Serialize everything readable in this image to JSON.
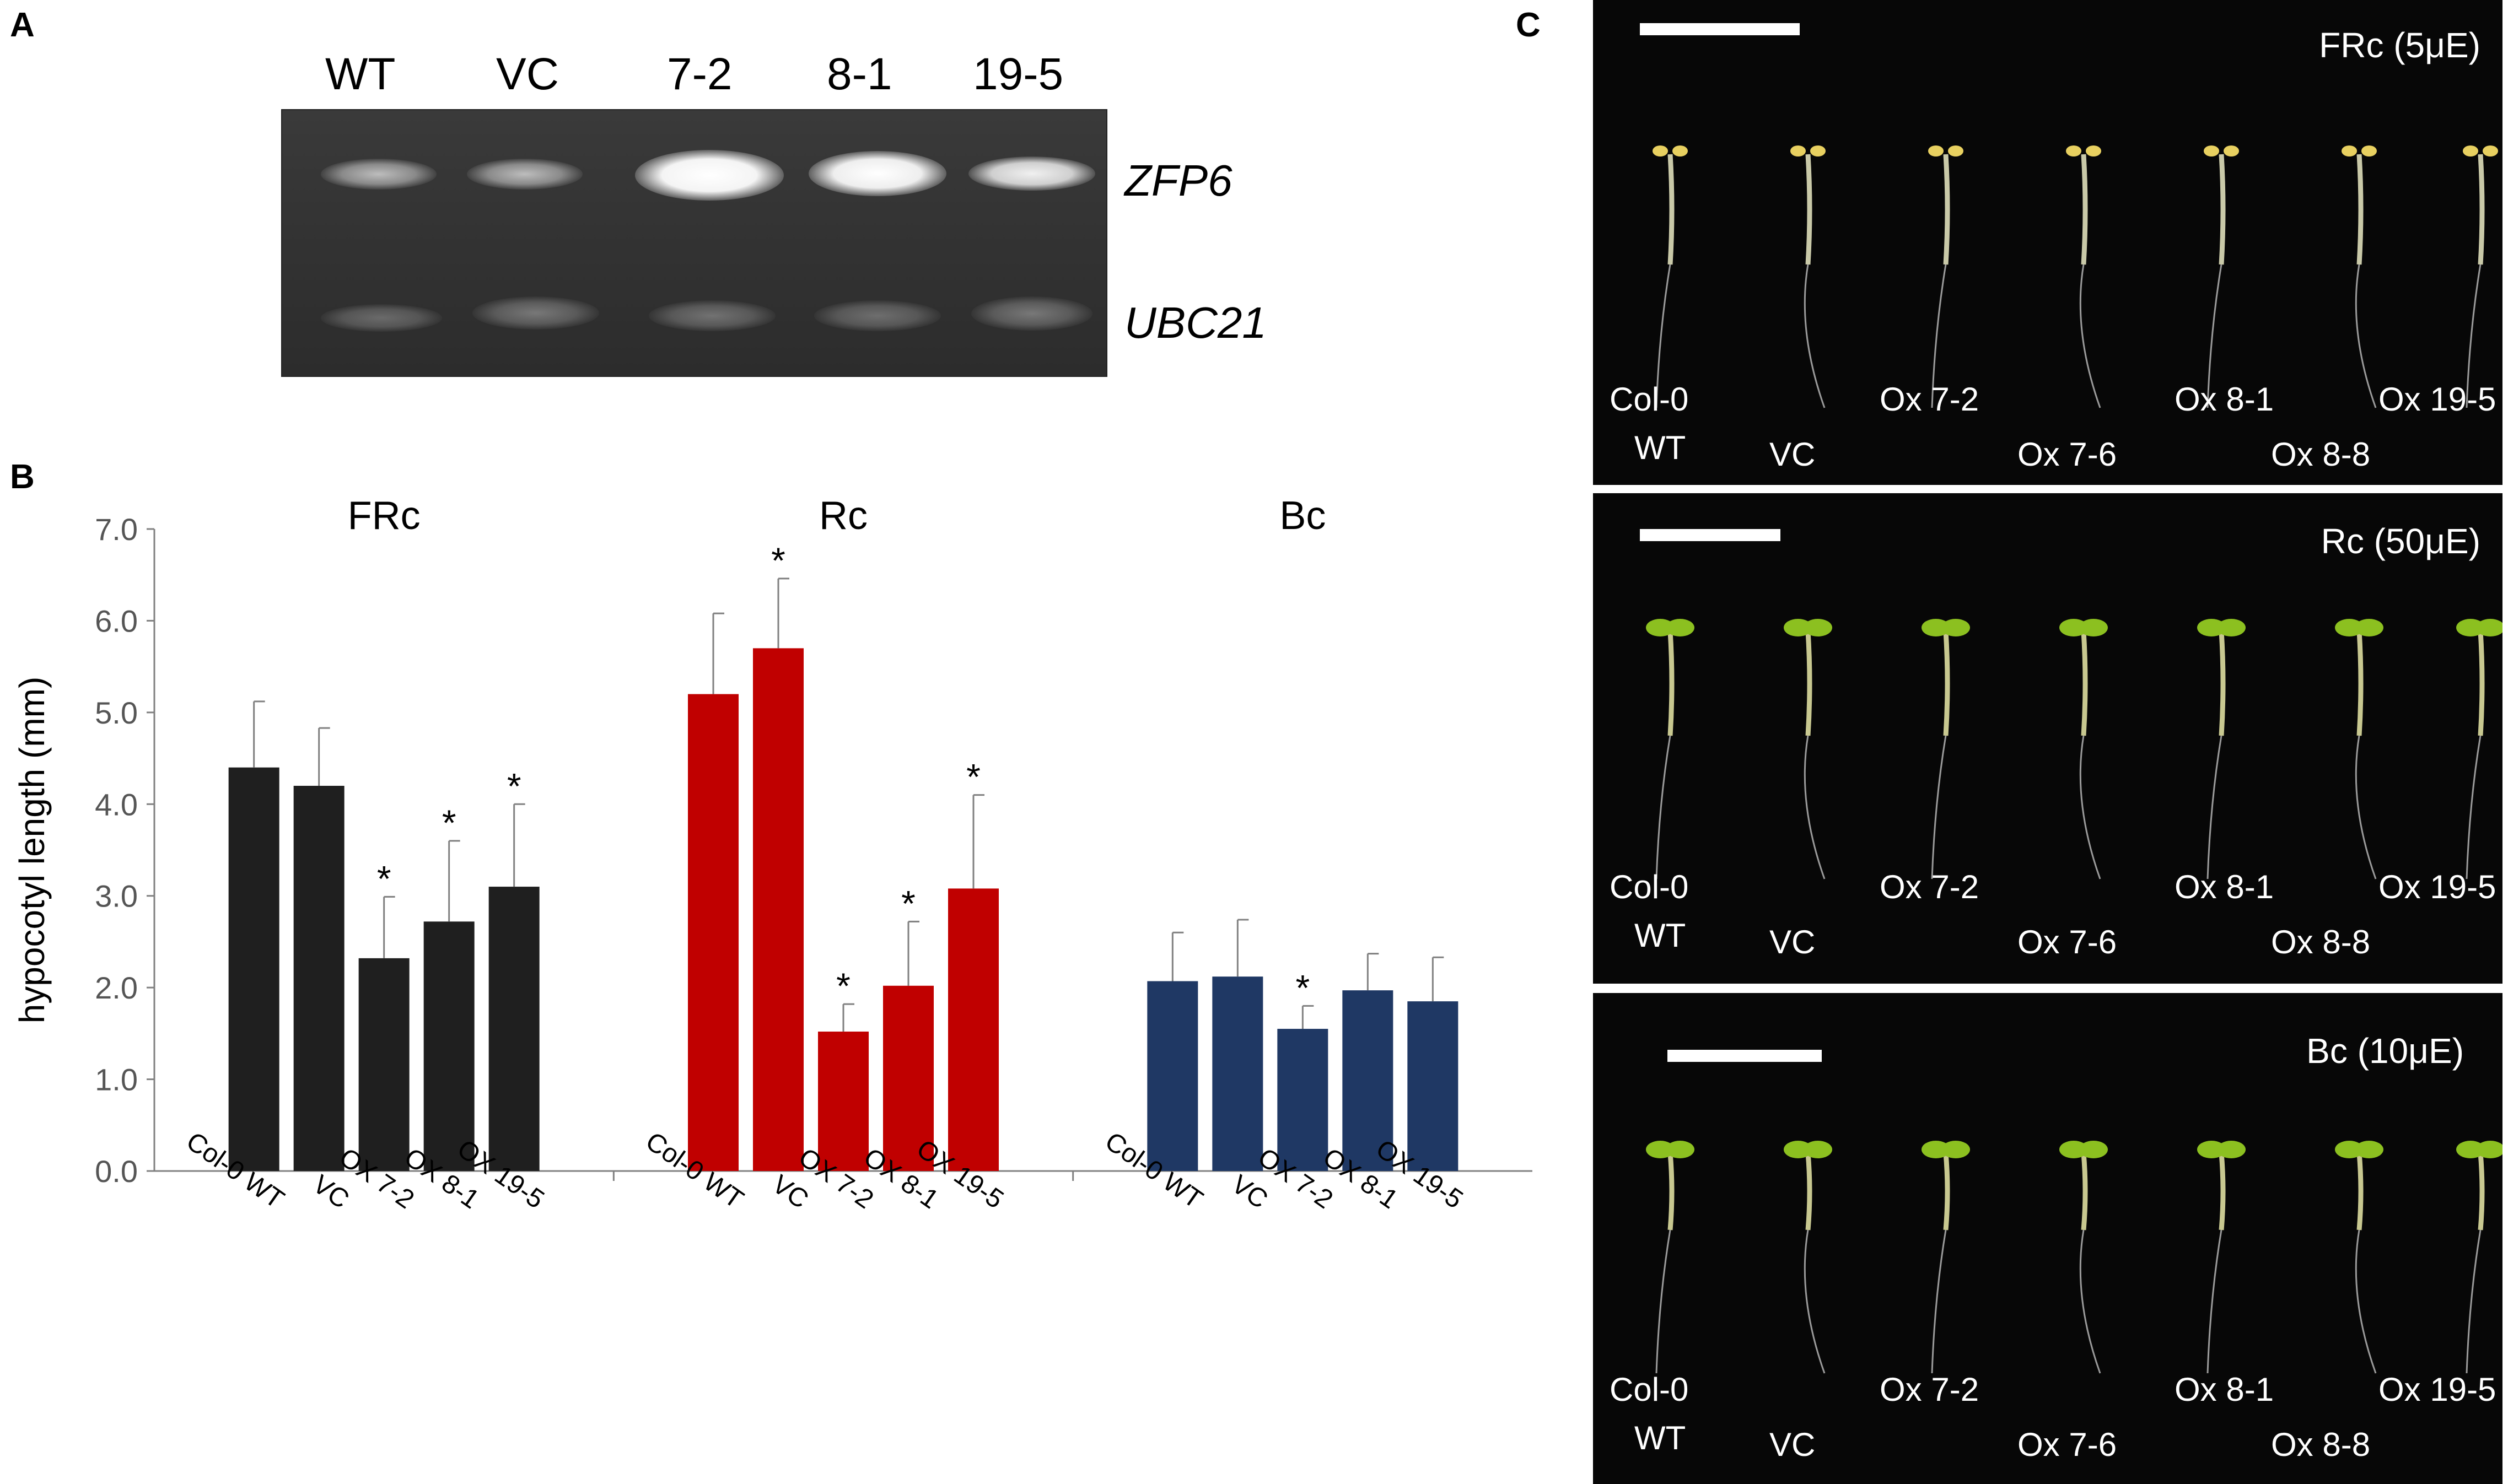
{
  "panel_labels": {
    "a": "A",
    "b": "B",
    "c": "C"
  },
  "gel": {
    "lanes": [
      "WT",
      "VC",
      "7-2",
      "8-1",
      "19-5"
    ],
    "genes": [
      "ZFP6",
      "UBC21"
    ]
  },
  "chart_data": {
    "type": "bar",
    "ylabel": "hypocotyl length (mm)",
    "ylim": [
      0,
      7
    ],
    "yticks": [
      "0.0",
      "1.0",
      "2.0",
      "3.0",
      "4.0",
      "5.0",
      "6.0",
      "7.0"
    ],
    "groups": [
      {
        "title": "FRc",
        "color": "#1f1f1f",
        "categories": [
          "Col-0 WT",
          "VC",
          "OX 7-2",
          "OX 8-1",
          "OX 19-5"
        ],
        "values": [
          4.4,
          4.2,
          2.32,
          2.72,
          3.1
        ],
        "errors": [
          0.72,
          0.63,
          0.67,
          0.88,
          0.9
        ],
        "significant": [
          false,
          false,
          true,
          true,
          true
        ]
      },
      {
        "title": "Rc",
        "color": "#c00000",
        "categories": [
          "Col-0 WT",
          "VC",
          "OX 7-2",
          "OX 8-1",
          "OX 19-5"
        ],
        "values": [
          5.2,
          5.7,
          1.52,
          2.02,
          3.08
        ],
        "errors": [
          0.88,
          0.76,
          0.3,
          0.7,
          1.02
        ],
        "significant": [
          false,
          true,
          true,
          true,
          true
        ]
      },
      {
        "title": "Bc",
        "color": "#1f3864",
        "categories": [
          "Col-0 WT",
          "VC",
          "OX 7-2",
          "OX 8-1",
          "OX 19-5"
        ],
        "values": [
          2.07,
          2.12,
          1.55,
          1.97,
          1.85
        ],
        "errors": [
          0.53,
          0.62,
          0.25,
          0.4,
          0.48
        ],
        "significant": [
          false,
          false,
          true,
          false,
          false
        ]
      }
    ],
    "significance_marker": "*"
  },
  "photos": [
    {
      "title": "FRc (5μE)",
      "labels_top": [
        "Col-0",
        "Ox 7-2",
        "Ox 8-1",
        "Ox 19-5"
      ],
      "labels_bottom": [
        "WT",
        "VC",
        "Ox 7-6",
        "Ox 8-8"
      ],
      "seedling_color": "#c9c9a8",
      "cotyledon_color": "#e8d060"
    },
    {
      "title": "Rc (50μE)",
      "labels_top": [
        "Col-0",
        "Ox 7-2",
        "Ox 8-1",
        "Ox 19-5"
      ],
      "labels_bottom": [
        "WT",
        "VC",
        "Ox 7-6",
        "Ox 8-8"
      ],
      "seedling_color": "#c8c890",
      "cotyledon_color": "#8cc020"
    },
    {
      "title": "Bc (10μE)",
      "labels_top": [
        "Col-0",
        "Ox 7-2",
        "Ox 8-1",
        "Ox 19-5"
      ],
      "labels_bottom": [
        "WT",
        "VC",
        "Ox 7-6",
        "Ox 8-8"
      ],
      "seedling_color": "#c8c890",
      "cotyledon_color": "#8cc020"
    }
  ]
}
